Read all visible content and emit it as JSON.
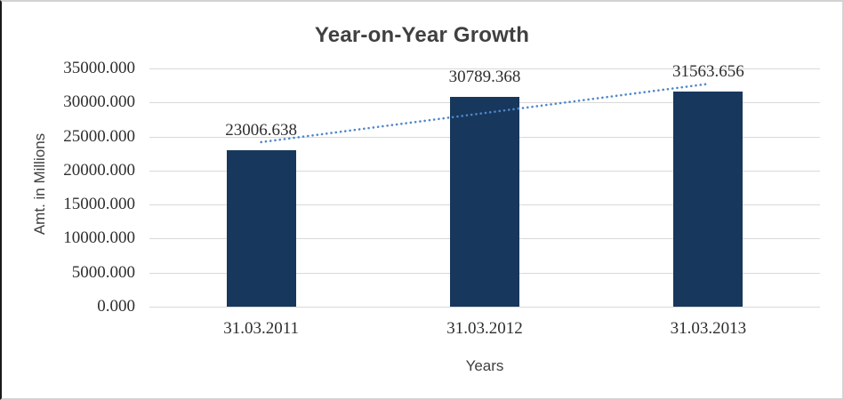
{
  "chart_data": {
    "type": "bar",
    "title": "Year-on-Year Growth",
    "categories": [
      "31.03.2011",
      "31.03.2012",
      "31.03.2013"
    ],
    "values": [
      23006.638,
      30789.368,
      31563.656
    ],
    "data_labels": [
      "23006.638",
      "30789.368",
      "31563.656"
    ],
    "xlabel": "Years",
    "ylabel": "Amt. in Millions",
    "ylim": [
      0,
      35000
    ],
    "ytick_interval": 5000,
    "ytick_labels": [
      "0.000",
      "5000.000",
      "10000.000",
      "15000.000",
      "20000.000",
      "25000.000",
      "30000.000",
      "35000.000"
    ],
    "grid": true,
    "legend": "none",
    "trendline": {
      "type": "linear",
      "style": "dotted"
    },
    "colors": {
      "bar": "#17375D",
      "trendline": "#4F87C8",
      "gridline": "#D9D9D9",
      "text": "#2E2E2E",
      "title_text": "#404040"
    }
  }
}
